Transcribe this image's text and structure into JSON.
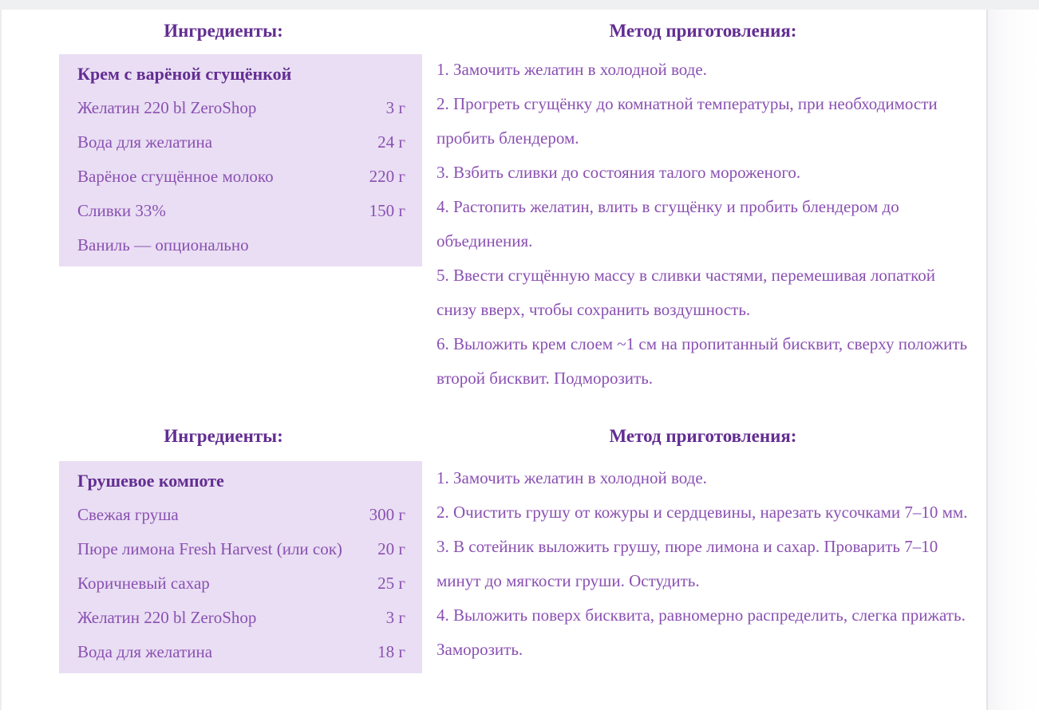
{
  "colors": {
    "heading_purple": "#632d92",
    "body_purple": "#8a50b2",
    "ingredient_box_bg": "#e9def3",
    "top_strip": "#eef0f1",
    "page_bg": "#ffffff"
  },
  "sections": [
    {
      "ingredients_heading": "Ингредиенты:",
      "method_heading": "Метод приготовления:",
      "ingredients": {
        "title": "Крем с варёной сгущёнкой",
        "items": [
          {
            "name": "Желатин 220 bl ZeroShop",
            "amount": "3 г"
          },
          {
            "name": "Вода для желатина",
            "amount": "24 г"
          },
          {
            "name": "Варёное сгущённое молоко",
            "amount": "220 г"
          },
          {
            "name": "Сливки 33%",
            "amount": "150 г"
          },
          {
            "name": "Ваниль — опционально",
            "amount": ""
          }
        ]
      },
      "method_steps": [
        "1. Замочить желатин в холодной воде.",
        "2. Прогреть сгущёнку до комнатной температуры, при необходимости пробить блендером.",
        "3. Взбить сливки до состояния талого мороженого.",
        "4. Растопить желатин, влить в сгущёнку и пробить блендером до объединения.",
        "5. Ввести сгущённую массу в сливки частями, перемешивая лопаткой снизу вверх, чтобы сохранить воздушность.",
        "6. Выложить крем слоем ~1 см на пропитанный бисквит, сверху положить второй бисквит. Подморозить."
      ]
    },
    {
      "ingredients_heading": "Ингредиенты:",
      "method_heading": "Метод приготовления:",
      "ingredients": {
        "title": "Грушевое компоте",
        "items": [
          {
            "name": "Свежая груша",
            "amount": "300 г"
          },
          {
            "name": "Пюре лимона Fresh Harvest (или сок)",
            "amount": "20 г"
          },
          {
            "name": "Коричневый сахар",
            "amount": "25 г"
          },
          {
            "name": "Желатин 220 bl ZeroShop",
            "amount": "3 г"
          },
          {
            "name": "Вода для желатина",
            "amount": "18 г"
          }
        ]
      },
      "method_steps": [
        "1. Замочить желатин в холодной воде.",
        "2. Очистить грушу от кожуры и сердцевины, нарезать кусочками 7–10 мм.",
        "3. В сотейник выложить грушу, пюре лимона и сахар. Проварить 7–10 минут до мягкости груши. Остудить.",
        "4. Выложить поверх бисквита, равномерно распределить, слегка прижать. Заморозить."
      ]
    }
  ]
}
